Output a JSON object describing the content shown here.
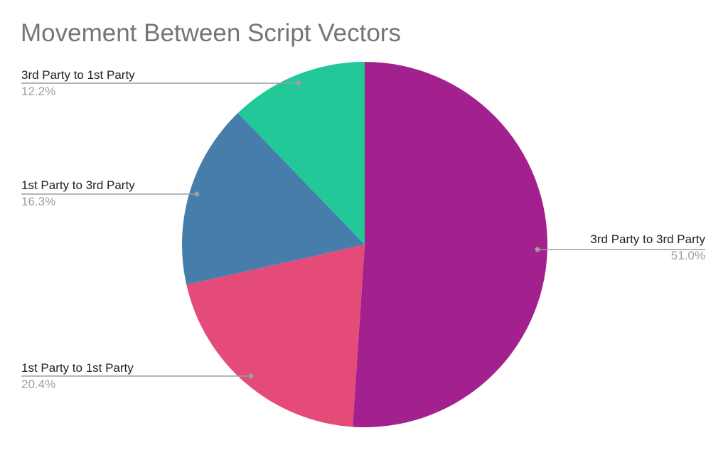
{
  "chart_data": {
    "type": "pie",
    "title": "Movement Between Script Vectors",
    "categories": [
      "3rd Party to 3rd Party",
      "1st Party to 1st Party",
      "1st Party to 3rd Party",
      "3rd Party to 1st Party"
    ],
    "values": [
      51.0,
      20.4,
      16.3,
      12.2
    ],
    "labels": [
      "51.0%",
      "20.4%",
      "16.3%",
      "12.2%"
    ],
    "colors": [
      "#A3218E",
      "#E54B79",
      "#477DAB",
      "#22C898"
    ],
    "legend_position": "labeled (leader lines)"
  },
  "slices": [
    {
      "label": "3rd Party to 3rd Party",
      "pct": "51.0%"
    },
    {
      "label": "1st Party to 1st Party",
      "pct": "20.4%"
    },
    {
      "label": "1st Party to 3rd Party",
      "pct": "16.3%"
    },
    {
      "label": "3rd Party to 1st Party",
      "pct": "12.2%"
    }
  ]
}
